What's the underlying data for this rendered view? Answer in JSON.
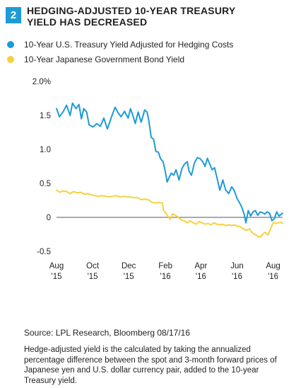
{
  "figure_number": "2",
  "title": "HEDGING-ADJUSTED 10-YEAR TREASURY YIELD HAS DECREASED",
  "source": "Source: LPL Research, Bloomberg   08/17/16",
  "note": "Hedge-adjusted yield is the calculated by taking the annualized percentage difference between the spot and 3-month forward prices of Japanese yen and U.S. dollar currency pair, added to the 10-year Treasury yield.",
  "colors": {
    "badge": "#1e9bd7",
    "treasury": "#1e9bd7",
    "jgb": "#f7d13d",
    "zero_line": "#231f20",
    "axis_text": "#231f20"
  },
  "chart_data": {
    "type": "line",
    "ylim": [
      -0.5,
      2.0
    ],
    "yticks": [
      2.0,
      1.5,
      1.0,
      0.5,
      0,
      -0.5
    ],
    "ytick_labels": [
      "2.0%",
      "1.5",
      "1.0",
      "0.5",
      "0",
      "-0.5"
    ],
    "xlim": [
      "2015-08-01",
      "2016-08-17"
    ],
    "xticks": [
      {
        "date": "2015-08-01",
        "label": [
          "Aug",
          "'15"
        ]
      },
      {
        "date": "2015-10-01",
        "label": [
          "Oct",
          "'15"
        ]
      },
      {
        "date": "2015-12-01",
        "label": [
          "Dec",
          "'15"
        ]
      },
      {
        "date": "2016-02-01",
        "label": [
          "Feb",
          "'16"
        ]
      },
      {
        "date": "2016-04-01",
        "label": [
          "Apr",
          "'16"
        ]
      },
      {
        "date": "2016-06-01",
        "label": [
          "Jun",
          "'16"
        ]
      },
      {
        "date": "2016-08-01",
        "label": [
          "Aug",
          "'16"
        ]
      }
    ],
    "zero_line": true,
    "grid": false,
    "legend_position": "top",
    "series": [
      {
        "name": "10-Year U.S. Treasury Yield Adjusted for Hedging Costs",
        "color": "#1e9bd7",
        "points": [
          [
            "2015-08-01",
            1.6
          ],
          [
            "2015-08-06",
            1.48
          ],
          [
            "2015-08-12",
            1.55
          ],
          [
            "2015-08-18",
            1.65
          ],
          [
            "2015-08-24",
            1.5
          ],
          [
            "2015-08-28",
            1.68
          ],
          [
            "2015-09-03",
            1.6
          ],
          [
            "2015-09-08",
            1.66
          ],
          [
            "2015-09-12",
            1.45
          ],
          [
            "2015-09-16",
            1.6
          ],
          [
            "2015-09-21",
            1.55
          ],
          [
            "2015-09-25",
            1.36
          ],
          [
            "2015-10-02",
            1.33
          ],
          [
            "2015-10-08",
            1.38
          ],
          [
            "2015-10-14",
            1.34
          ],
          [
            "2015-10-20",
            1.46
          ],
          [
            "2015-10-26",
            1.3
          ],
          [
            "2015-11-02",
            1.48
          ],
          [
            "2015-11-08",
            1.62
          ],
          [
            "2015-11-13",
            1.54
          ],
          [
            "2015-11-18",
            1.48
          ],
          [
            "2015-11-24",
            1.56
          ],
          [
            "2015-11-30",
            1.46
          ],
          [
            "2015-12-04",
            1.6
          ],
          [
            "2015-12-08",
            1.5
          ],
          [
            "2015-12-12",
            1.38
          ],
          [
            "2015-12-17",
            1.55
          ],
          [
            "2015-12-22",
            1.4
          ],
          [
            "2015-12-28",
            1.58
          ],
          [
            "2016-01-01",
            1.55
          ],
          [
            "2016-01-04",
            1.42
          ],
          [
            "2016-01-08",
            1.18
          ],
          [
            "2016-01-12",
            1.15
          ],
          [
            "2016-01-16",
            0.97
          ],
          [
            "2016-01-20",
            0.96
          ],
          [
            "2016-01-24",
            0.86
          ],
          [
            "2016-01-28",
            0.82
          ],
          [
            "2016-02-01",
            0.67
          ],
          [
            "2016-02-04",
            0.52
          ],
          [
            "2016-02-08",
            0.6
          ],
          [
            "2016-02-11",
            0.65
          ],
          [
            "2016-02-15",
            0.62
          ],
          [
            "2016-02-19",
            0.7
          ],
          [
            "2016-02-24",
            0.55
          ],
          [
            "2016-02-29",
            0.72
          ],
          [
            "2016-03-04",
            0.78
          ],
          [
            "2016-03-09",
            0.82
          ],
          [
            "2016-03-12",
            0.68
          ],
          [
            "2016-03-16",
            0.62
          ],
          [
            "2016-03-21",
            0.8
          ],
          [
            "2016-03-26",
            0.88
          ],
          [
            "2016-03-31",
            0.86
          ],
          [
            "2016-04-04",
            0.82
          ],
          [
            "2016-04-08",
            0.75
          ],
          [
            "2016-04-12",
            0.87
          ],
          [
            "2016-04-16",
            0.78
          ],
          [
            "2016-04-20",
            0.7
          ],
          [
            "2016-04-24",
            0.73
          ],
          [
            "2016-04-29",
            0.55
          ],
          [
            "2016-05-03",
            0.4
          ],
          [
            "2016-05-08",
            0.55
          ],
          [
            "2016-05-13",
            0.4
          ],
          [
            "2016-05-18",
            0.35
          ],
          [
            "2016-05-23",
            0.45
          ],
          [
            "2016-05-27",
            0.4
          ],
          [
            "2016-06-01",
            0.28
          ],
          [
            "2016-06-05",
            0.22
          ],
          [
            "2016-06-09",
            0.15
          ],
          [
            "2016-06-13",
            0.05
          ],
          [
            "2016-06-16",
            -0.08
          ],
          [
            "2016-06-20",
            0.1
          ],
          [
            "2016-06-24",
            0.02
          ],
          [
            "2016-06-28",
            0.08
          ],
          [
            "2016-07-02",
            0.1
          ],
          [
            "2016-07-06",
            0.03
          ],
          [
            "2016-07-10",
            0.08
          ],
          [
            "2016-07-14",
            0.07
          ],
          [
            "2016-07-18",
            0.05
          ],
          [
            "2016-07-22",
            0.08
          ],
          [
            "2016-07-26",
            0.06
          ],
          [
            "2016-07-30",
            -0.05
          ],
          [
            "2016-08-03",
            -0.02
          ],
          [
            "2016-08-07",
            0.08
          ],
          [
            "2016-08-11",
            0.02
          ],
          [
            "2016-08-17",
            0.06
          ]
        ]
      },
      {
        "name": "10-Year Japanese Government Bond Yield",
        "color": "#f7d13d",
        "points": [
          [
            "2015-08-01",
            0.4
          ],
          [
            "2015-08-06",
            0.37
          ],
          [
            "2015-08-12",
            0.39
          ],
          [
            "2015-08-18",
            0.38
          ],
          [
            "2015-08-24",
            0.35
          ],
          [
            "2015-08-30",
            0.38
          ],
          [
            "2015-09-05",
            0.36
          ],
          [
            "2015-09-11",
            0.37
          ],
          [
            "2015-09-17",
            0.34
          ],
          [
            "2015-09-23",
            0.35
          ],
          [
            "2015-09-29",
            0.33
          ],
          [
            "2015-10-05",
            0.32
          ],
          [
            "2015-10-11",
            0.31
          ],
          [
            "2015-10-17",
            0.32
          ],
          [
            "2015-10-23",
            0.31
          ],
          [
            "2015-10-29",
            0.3
          ],
          [
            "2015-11-04",
            0.31
          ],
          [
            "2015-11-10",
            0.32
          ],
          [
            "2015-11-16",
            0.3
          ],
          [
            "2015-11-22",
            0.31
          ],
          [
            "2015-11-28",
            0.3
          ],
          [
            "2015-12-04",
            0.3
          ],
          [
            "2015-12-10",
            0.29
          ],
          [
            "2015-12-16",
            0.29
          ],
          [
            "2015-12-22",
            0.26
          ],
          [
            "2015-12-28",
            0.27
          ],
          [
            "2016-01-03",
            0.26
          ],
          [
            "2016-01-09",
            0.22
          ],
          [
            "2016-01-15",
            0.21
          ],
          [
            "2016-01-21",
            0.22
          ],
          [
            "2016-01-27",
            0.21
          ],
          [
            "2016-01-29",
            0.1
          ],
          [
            "2016-02-02",
            0.06
          ],
          [
            "2016-02-05",
            0.02
          ],
          [
            "2016-02-09",
            -0.03
          ],
          [
            "2016-02-13",
            0.05
          ],
          [
            "2016-02-18",
            0.03
          ],
          [
            "2016-02-23",
            0.0
          ],
          [
            "2016-02-28",
            -0.04
          ],
          [
            "2016-03-04",
            -0.05
          ],
          [
            "2016-03-09",
            -0.08
          ],
          [
            "2016-03-14",
            -0.05
          ],
          [
            "2016-03-19",
            -0.08
          ],
          [
            "2016-03-24",
            -0.1
          ],
          [
            "2016-03-29",
            -0.06
          ],
          [
            "2016-04-03",
            -0.08
          ],
          [
            "2016-04-08",
            -0.1
          ],
          [
            "2016-04-13",
            -0.09
          ],
          [
            "2016-04-18",
            -0.11
          ],
          [
            "2016-04-23",
            -0.08
          ],
          [
            "2016-04-28",
            -0.1
          ],
          [
            "2016-05-03",
            -0.11
          ],
          [
            "2016-05-08",
            -0.1
          ],
          [
            "2016-05-13",
            -0.12
          ],
          [
            "2016-05-18",
            -0.11
          ],
          [
            "2016-05-23",
            -0.12
          ],
          [
            "2016-05-28",
            -0.11
          ],
          [
            "2016-06-02",
            -0.13
          ],
          [
            "2016-06-07",
            -0.14
          ],
          [
            "2016-06-12",
            -0.17
          ],
          [
            "2016-06-17",
            -0.19
          ],
          [
            "2016-06-22",
            -0.17
          ],
          [
            "2016-06-27",
            -0.23
          ],
          [
            "2016-07-01",
            -0.25
          ],
          [
            "2016-07-05",
            -0.27
          ],
          [
            "2016-07-08",
            -0.29
          ],
          [
            "2016-07-12",
            -0.28
          ],
          [
            "2016-07-15",
            -0.24
          ],
          [
            "2016-07-19",
            -0.22
          ],
          [
            "2016-07-23",
            -0.26
          ],
          [
            "2016-07-27",
            -0.19
          ],
          [
            "2016-07-30",
            -0.12
          ],
          [
            "2016-08-02",
            -0.07
          ],
          [
            "2016-08-06",
            -0.09
          ],
          [
            "2016-08-10",
            -0.08
          ],
          [
            "2016-08-14",
            -0.07
          ],
          [
            "2016-08-17",
            -0.09
          ]
        ]
      }
    ]
  }
}
